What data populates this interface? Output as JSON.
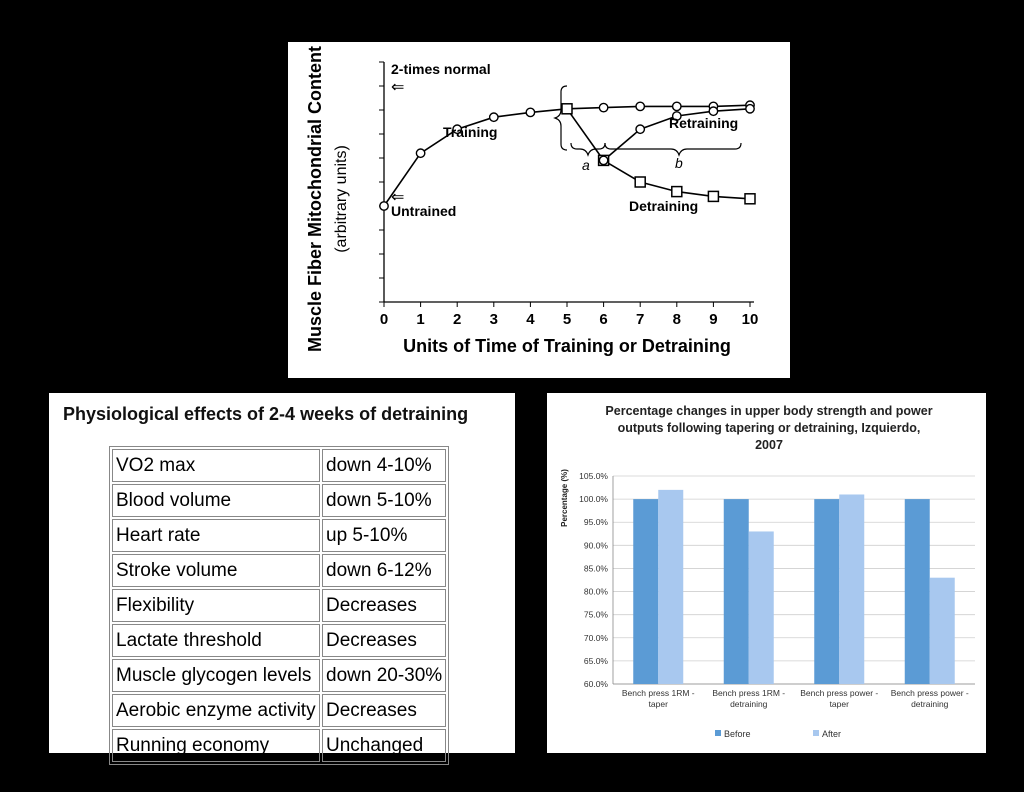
{
  "chart_data": [
    {
      "type": "line",
      "xlabel": "Units of Time of Training or Detraining",
      "ylabel": "Muscle Fiber Mitochondrial Content",
      "ylabel_sub": "(arbitrary units)",
      "x_ticks": [
        "0",
        "1",
        "2",
        "3",
        "4",
        "5",
        "6",
        "7",
        "8",
        "9",
        "10"
      ],
      "xlim": [
        0,
        10
      ],
      "ylim": [
        0,
        10
      ],
      "annotations": {
        "two_times_normal": "2-times normal",
        "untrained": "Untrained",
        "training": "Training",
        "retraining": "Retraining",
        "detraining": "Detraining",
        "a": "a",
        "b": "b",
        "arrow": "⇐"
      },
      "series": [
        {
          "name": "Training",
          "marker": "circle",
          "x": [
            0,
            1,
            2,
            3,
            4,
            5,
            6,
            7,
            8,
            9,
            10
          ],
          "y": [
            4.0,
            6.2,
            7.2,
            7.7,
            7.9,
            8.05,
            8.1,
            8.15,
            8.15,
            8.15,
            8.2
          ]
        },
        {
          "name": "Detraining",
          "marker": "square",
          "x": [
            5,
            6,
            7,
            8,
            9,
            10
          ],
          "y": [
            8.05,
            5.9,
            5.0,
            4.6,
            4.4,
            4.3
          ]
        },
        {
          "name": "Retraining",
          "marker": "circle",
          "x": [
            6,
            7,
            8,
            9,
            10
          ],
          "y": [
            5.9,
            7.2,
            7.75,
            7.95,
            8.05
          ]
        }
      ]
    },
    {
      "type": "bar",
      "title": "Percentage changes in upper body strength and power outputs following tapering or detraining, Izquierdo, 2007",
      "ylabel": "Percentage (%)",
      "categories": [
        "Bench press 1RM - taper",
        "Bench press 1RM - detraining",
        "Bench press power - taper",
        "Bench press power - detraining"
      ],
      "ylim": [
        60,
        105
      ],
      "y_ticks": [
        "60.0%",
        "65.0%",
        "70.0%",
        "75.0%",
        "80.0%",
        "85.0%",
        "90.0%",
        "95.0%",
        "100.0%",
        "105.0%"
      ],
      "grid": true,
      "legend_position": "bottom",
      "series": [
        {
          "name": "Before",
          "values": [
            100,
            100,
            100,
            100
          ],
          "color": "#5b9bd5"
        },
        {
          "name": "After",
          "values": [
            102,
            93,
            101,
            83
          ],
          "color": "#a8c8ef"
        }
      ]
    }
  ],
  "table": {
    "title": "Physiological effects of 2-4 weeks of detraining",
    "rows": [
      [
        "VO2 max",
        "down 4-10%"
      ],
      [
        "Blood volume",
        "down 5-10%"
      ],
      [
        "Heart rate",
        "up 5-10%"
      ],
      [
        "Stroke volume",
        "down 6-12%"
      ],
      [
        "Flexibility",
        "Decreases"
      ],
      [
        "Lactate threshold",
        "Decreases"
      ],
      [
        "Muscle glycogen levels",
        "down 20-30%"
      ],
      [
        "Aerobic enzyme activity",
        "Decreases"
      ],
      [
        "Running economy",
        "Unchanged"
      ]
    ]
  }
}
